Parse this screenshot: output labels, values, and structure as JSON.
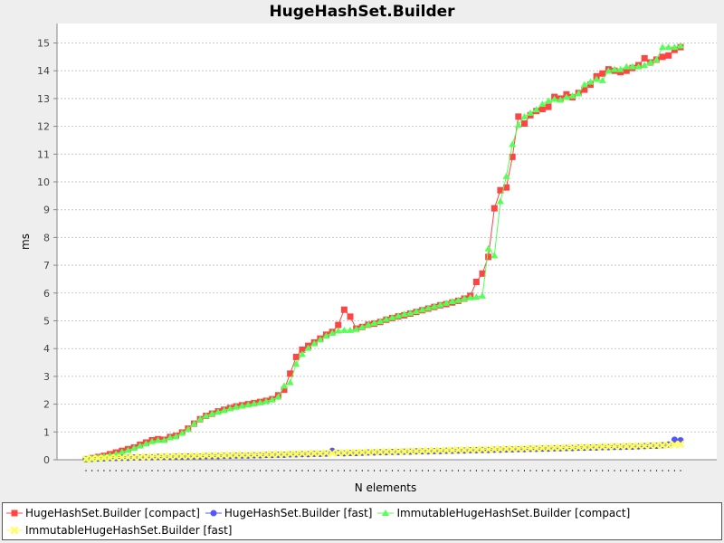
{
  "chart_data": {
    "type": "line",
    "title": "HugeHashSet.Builder",
    "xlabel": "N elements",
    "ylabel": "ms",
    "ylim": [
      0,
      15.7
    ],
    "yticks": [
      0,
      1,
      2,
      3,
      4,
      5,
      6,
      7,
      8,
      9,
      10,
      11,
      12,
      13,
      14,
      15
    ],
    "x_count": 100,
    "grid": true,
    "legend_position": "bottom",
    "series": [
      {
        "name": "HugeHashSet.Builder [compact]",
        "color": "#ff4444",
        "marker": "square",
        "values": [
          0.02,
          0.06,
          0.1,
          0.14,
          0.2,
          0.26,
          0.32,
          0.38,
          0.44,
          0.54,
          0.62,
          0.7,
          0.74,
          0.72,
          0.82,
          0.86,
          0.98,
          1.12,
          1.3,
          1.46,
          1.58,
          1.66,
          1.74,
          1.8,
          1.86,
          1.92,
          1.96,
          2.0,
          2.04,
          2.08,
          2.12,
          2.18,
          2.32,
          2.52,
          3.1,
          3.7,
          3.96,
          4.1,
          4.22,
          4.36,
          4.5,
          4.6,
          4.85,
          5.4,
          5.15,
          4.72,
          4.78,
          4.86,
          4.9,
          4.96,
          5.04,
          5.1,
          5.16,
          5.2,
          5.26,
          5.32,
          5.38,
          5.44,
          5.5,
          5.56,
          5.6,
          5.66,
          5.72,
          5.8,
          5.9,
          6.4,
          6.7,
          7.3,
          9.05,
          9.7,
          9.8,
          10.9,
          12.35,
          12.1,
          12.4,
          12.55,
          12.62,
          12.7,
          13.06,
          13.0,
          13.15,
          13.05,
          13.2,
          13.32,
          13.5,
          13.8,
          13.9,
          14.05,
          14.0,
          13.95,
          14.0,
          14.1,
          14.2,
          14.45,
          14.3,
          14.4,
          14.5,
          14.55,
          14.75,
          14.85
        ]
      },
      {
        "name": "HugeHashSet.Builder [fast]",
        "color": "#5555ff",
        "marker": "circle",
        "values": [
          0.02,
          0.03,
          0.04,
          0.05,
          0.06,
          0.06,
          0.07,
          0.07,
          0.08,
          0.08,
          0.09,
          0.09,
          0.1,
          0.1,
          0.1,
          0.11,
          0.11,
          0.12,
          0.12,
          0.12,
          0.13,
          0.13,
          0.13,
          0.14,
          0.14,
          0.15,
          0.15,
          0.15,
          0.16,
          0.16,
          0.17,
          0.17,
          0.18,
          0.18,
          0.19,
          0.19,
          0.2,
          0.2,
          0.21,
          0.21,
          0.22,
          0.32,
          0.24,
          0.23,
          0.24,
          0.24,
          0.25,
          0.26,
          0.26,
          0.27,
          0.27,
          0.28,
          0.28,
          0.29,
          0.29,
          0.3,
          0.3,
          0.3,
          0.31,
          0.31,
          0.32,
          0.32,
          0.33,
          0.33,
          0.34,
          0.34,
          0.35,
          0.35,
          0.36,
          0.36,
          0.37,
          0.37,
          0.38,
          0.38,
          0.39,
          0.39,
          0.4,
          0.4,
          0.41,
          0.41,
          0.42,
          0.42,
          0.43,
          0.43,
          0.44,
          0.44,
          0.45,
          0.45,
          0.46,
          0.46,
          0.47,
          0.47,
          0.48,
          0.49,
          0.5,
          0.5,
          0.52,
          0.55,
          0.72,
          0.7
        ]
      },
      {
        "name": "ImmutableHugeHashSet.Builder [compact]",
        "color": "#55ff55",
        "marker": "triangle",
        "values": [
          0.02,
          0.05,
          0.08,
          0.12,
          0.16,
          0.22,
          0.28,
          0.34,
          0.42,
          0.5,
          0.58,
          0.66,
          0.7,
          0.7,
          0.8,
          0.84,
          0.96,
          1.1,
          1.3,
          1.46,
          1.58,
          1.66,
          1.72,
          1.78,
          1.84,
          1.9,
          1.94,
          1.98,
          2.02,
          2.06,
          2.1,
          2.16,
          2.26,
          2.66,
          2.78,
          3.45,
          3.8,
          4.02,
          4.18,
          4.32,
          4.46,
          4.56,
          4.64,
          4.66,
          4.66,
          4.7,
          4.78,
          4.86,
          4.92,
          4.98,
          5.06,
          5.12,
          5.18,
          5.24,
          5.28,
          5.34,
          5.4,
          5.46,
          5.52,
          5.58,
          5.64,
          5.7,
          5.74,
          5.8,
          5.84,
          5.86,
          5.9,
          7.6,
          7.35,
          9.3,
          10.2,
          11.35,
          12.05,
          12.35,
          12.48,
          12.6,
          12.8,
          12.92,
          12.98,
          12.95,
          13.05,
          13.1,
          13.18,
          13.5,
          13.6,
          13.7,
          13.65,
          14.0,
          14.05,
          14.05,
          14.15,
          14.15,
          14.15,
          14.2,
          14.3,
          14.4,
          14.85,
          14.85,
          14.85,
          14.9
        ]
      },
      {
        "name": "ImmutableHugeHashSet.Builder [fast]",
        "color": "#ffff55",
        "marker": "x",
        "values": [
          0.03,
          0.04,
          0.05,
          0.06,
          0.07,
          0.08,
          0.08,
          0.09,
          0.09,
          0.1,
          0.1,
          0.11,
          0.11,
          0.12,
          0.12,
          0.13,
          0.13,
          0.13,
          0.14,
          0.14,
          0.15,
          0.15,
          0.15,
          0.16,
          0.16,
          0.17,
          0.17,
          0.17,
          0.18,
          0.18,
          0.19,
          0.19,
          0.2,
          0.2,
          0.21,
          0.21,
          0.22,
          0.22,
          0.23,
          0.23,
          0.24,
          0.24,
          0.25,
          0.25,
          0.26,
          0.26,
          0.27,
          0.27,
          0.28,
          0.28,
          0.29,
          0.29,
          0.3,
          0.3,
          0.31,
          0.31,
          0.32,
          0.32,
          0.33,
          0.33,
          0.34,
          0.34,
          0.35,
          0.35,
          0.36,
          0.36,
          0.37,
          0.37,
          0.38,
          0.38,
          0.39,
          0.39,
          0.4,
          0.4,
          0.41,
          0.41,
          0.42,
          0.42,
          0.43,
          0.43,
          0.44,
          0.44,
          0.45,
          0.45,
          0.46,
          0.46,
          0.47,
          0.47,
          0.48,
          0.48,
          0.49,
          0.49,
          0.5,
          0.5,
          0.51,
          0.52,
          0.52,
          0.53,
          0.55,
          0.56
        ]
      }
    ]
  }
}
